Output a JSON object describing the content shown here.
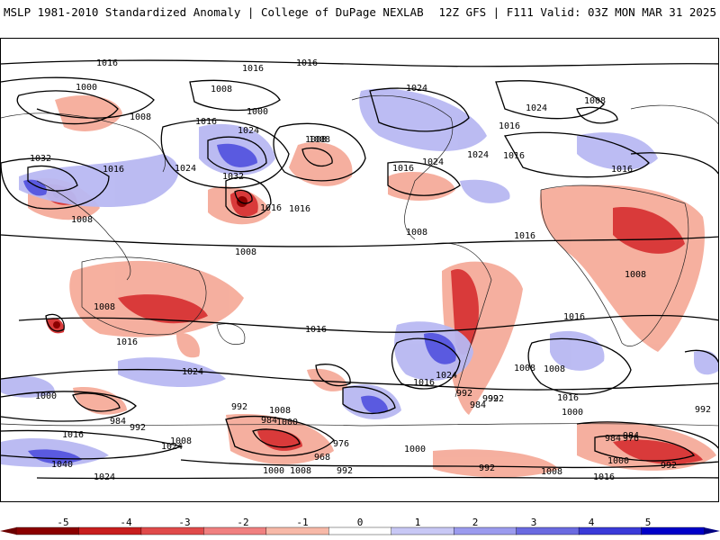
{
  "header": {
    "left_title": "MSLP 1981-2010 Standardized Anomaly | College of DuPage NEXLAB",
    "right_title": "12Z GFS | F111 Valid: 03Z MON MAR 31 2025"
  },
  "colorbar": {
    "ticks": [
      "-5",
      "-4",
      "-3",
      "-2",
      "-1",
      "0",
      "1",
      "2",
      "3",
      "4",
      "5"
    ],
    "colors": [
      "#8b0000",
      "#c81e1e",
      "#e04a4a",
      "#f08080",
      "#f7b9a8",
      "#ffffff",
      "#c8c8f5",
      "#9b9bee",
      "#6a6ae0",
      "#3a3ad8",
      "#0000c8"
    ]
  },
  "contour_labels": [
    "1016",
    "1016",
    "1016",
    "1000",
    "1008",
    "1008",
    "1000",
    "1024",
    "1008",
    "1024",
    "1016",
    "1032",
    "1024",
    "1016",
    "1032",
    "1008",
    "1016",
    "1008",
    "1016",
    "1024",
    "1016",
    "1024",
    "1016",
    "1024",
    "1016",
    "1008",
    "1016",
    "1008",
    "1008",
    "1008",
    "1016",
    "1016",
    "1008",
    "1016",
    "1024",
    "1008",
    "1016",
    "1000",
    "992",
    "984",
    "992",
    "1016",
    "1000",
    "1008",
    "1024",
    "1040",
    "1024",
    "1008",
    "1000",
    "992",
    "984",
    "968",
    "976",
    "992",
    "1000",
    "1008",
    "992",
    "984",
    "992",
    "1024",
    "1016",
    "1000",
    "992",
    "1008",
    "992",
    "984",
    "1016",
    "1000",
    "976",
    "984",
    "992",
    "1008",
    "1016"
  ]
}
